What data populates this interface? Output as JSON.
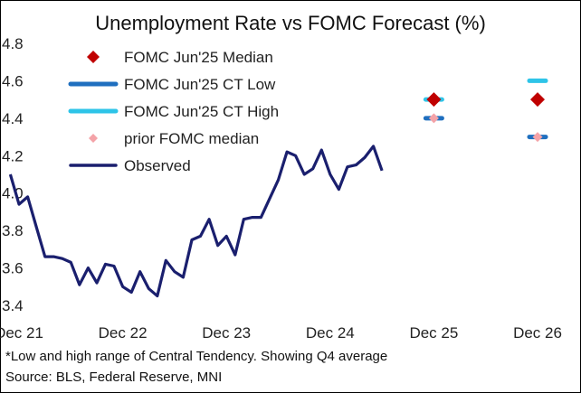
{
  "chart_data": {
    "type": "line",
    "title": "Unemployment Rate vs FOMC Forecast (%)",
    "xlabel": "",
    "ylabel": "",
    "ylim": [
      3.4,
      4.8
    ],
    "yticks": [
      "3.4",
      "3.6",
      "3.8",
      "4.0",
      "4.2",
      "4.4",
      "4.6",
      "4.8"
    ],
    "xticks": [
      "Dec 21",
      "Dec 22",
      "Dec 23",
      "Dec 24",
      "Dec 25",
      "Dec 26"
    ],
    "grid": false,
    "legend_position": "top-left",
    "series": [
      {
        "name": "Observed",
        "kind": "line",
        "color": "#1a1f6e",
        "x": [
          "2021-11",
          "2021-12",
          "2022-01",
          "2022-02",
          "2022-03",
          "2022-04",
          "2022-05",
          "2022-06",
          "2022-07",
          "2022-08",
          "2022-09",
          "2022-10",
          "2022-11",
          "2022-12",
          "2023-01",
          "2023-02",
          "2023-03",
          "2023-04",
          "2023-05",
          "2023-06",
          "2023-07",
          "2023-08",
          "2023-09",
          "2023-10",
          "2023-11",
          "2023-12",
          "2024-01",
          "2024-02",
          "2024-03",
          "2024-04",
          "2024-05",
          "2024-06",
          "2024-07",
          "2024-08",
          "2024-09",
          "2024-10",
          "2024-11",
          "2024-12",
          "2025-01",
          "2025-02",
          "2025-03",
          "2025-04",
          "2025-05",
          "2025-06"
        ],
        "y": [
          4.1,
          3.94,
          3.98,
          3.82,
          3.66,
          3.66,
          3.65,
          3.63,
          3.51,
          3.6,
          3.52,
          3.62,
          3.61,
          3.5,
          3.47,
          3.58,
          3.49,
          3.45,
          3.64,
          3.58,
          3.55,
          3.75,
          3.77,
          3.86,
          3.72,
          3.77,
          3.67,
          3.86,
          3.87,
          3.87,
          3.97,
          4.07,
          4.22,
          4.2,
          4.1,
          4.13,
          4.23,
          4.1,
          4.02,
          4.14,
          4.15,
          4.19,
          4.25,
          4.12
        ]
      },
      {
        "name": "FOMC Jun'25 Median",
        "kind": "diamond",
        "color": "#c00000",
        "x": [
          "2025-12",
          "2026-12"
        ],
        "y": [
          4.5,
          4.5
        ]
      },
      {
        "name": "FOMC Jun'25 CT Low",
        "kind": "dash",
        "color": "#1f6fbf",
        "x": [
          "2025-12",
          "2026-12"
        ],
        "y": [
          4.4,
          4.3
        ]
      },
      {
        "name": "FOMC Jun'25 CT High",
        "kind": "dash",
        "color": "#2ec4e8",
        "x": [
          "2025-12",
          "2026-12"
        ],
        "y": [
          4.5,
          4.6
        ]
      },
      {
        "name": "prior FOMC median",
        "kind": "diamond",
        "color": "#f4a3a8",
        "x": [
          "2025-12",
          "2026-12"
        ],
        "y": [
          4.4,
          4.3
        ]
      }
    ]
  },
  "footnote": "*Low and high range of Central Tendency. Showing Q4 average",
  "source": "Source: BLS, Federal Reserve, MNI"
}
